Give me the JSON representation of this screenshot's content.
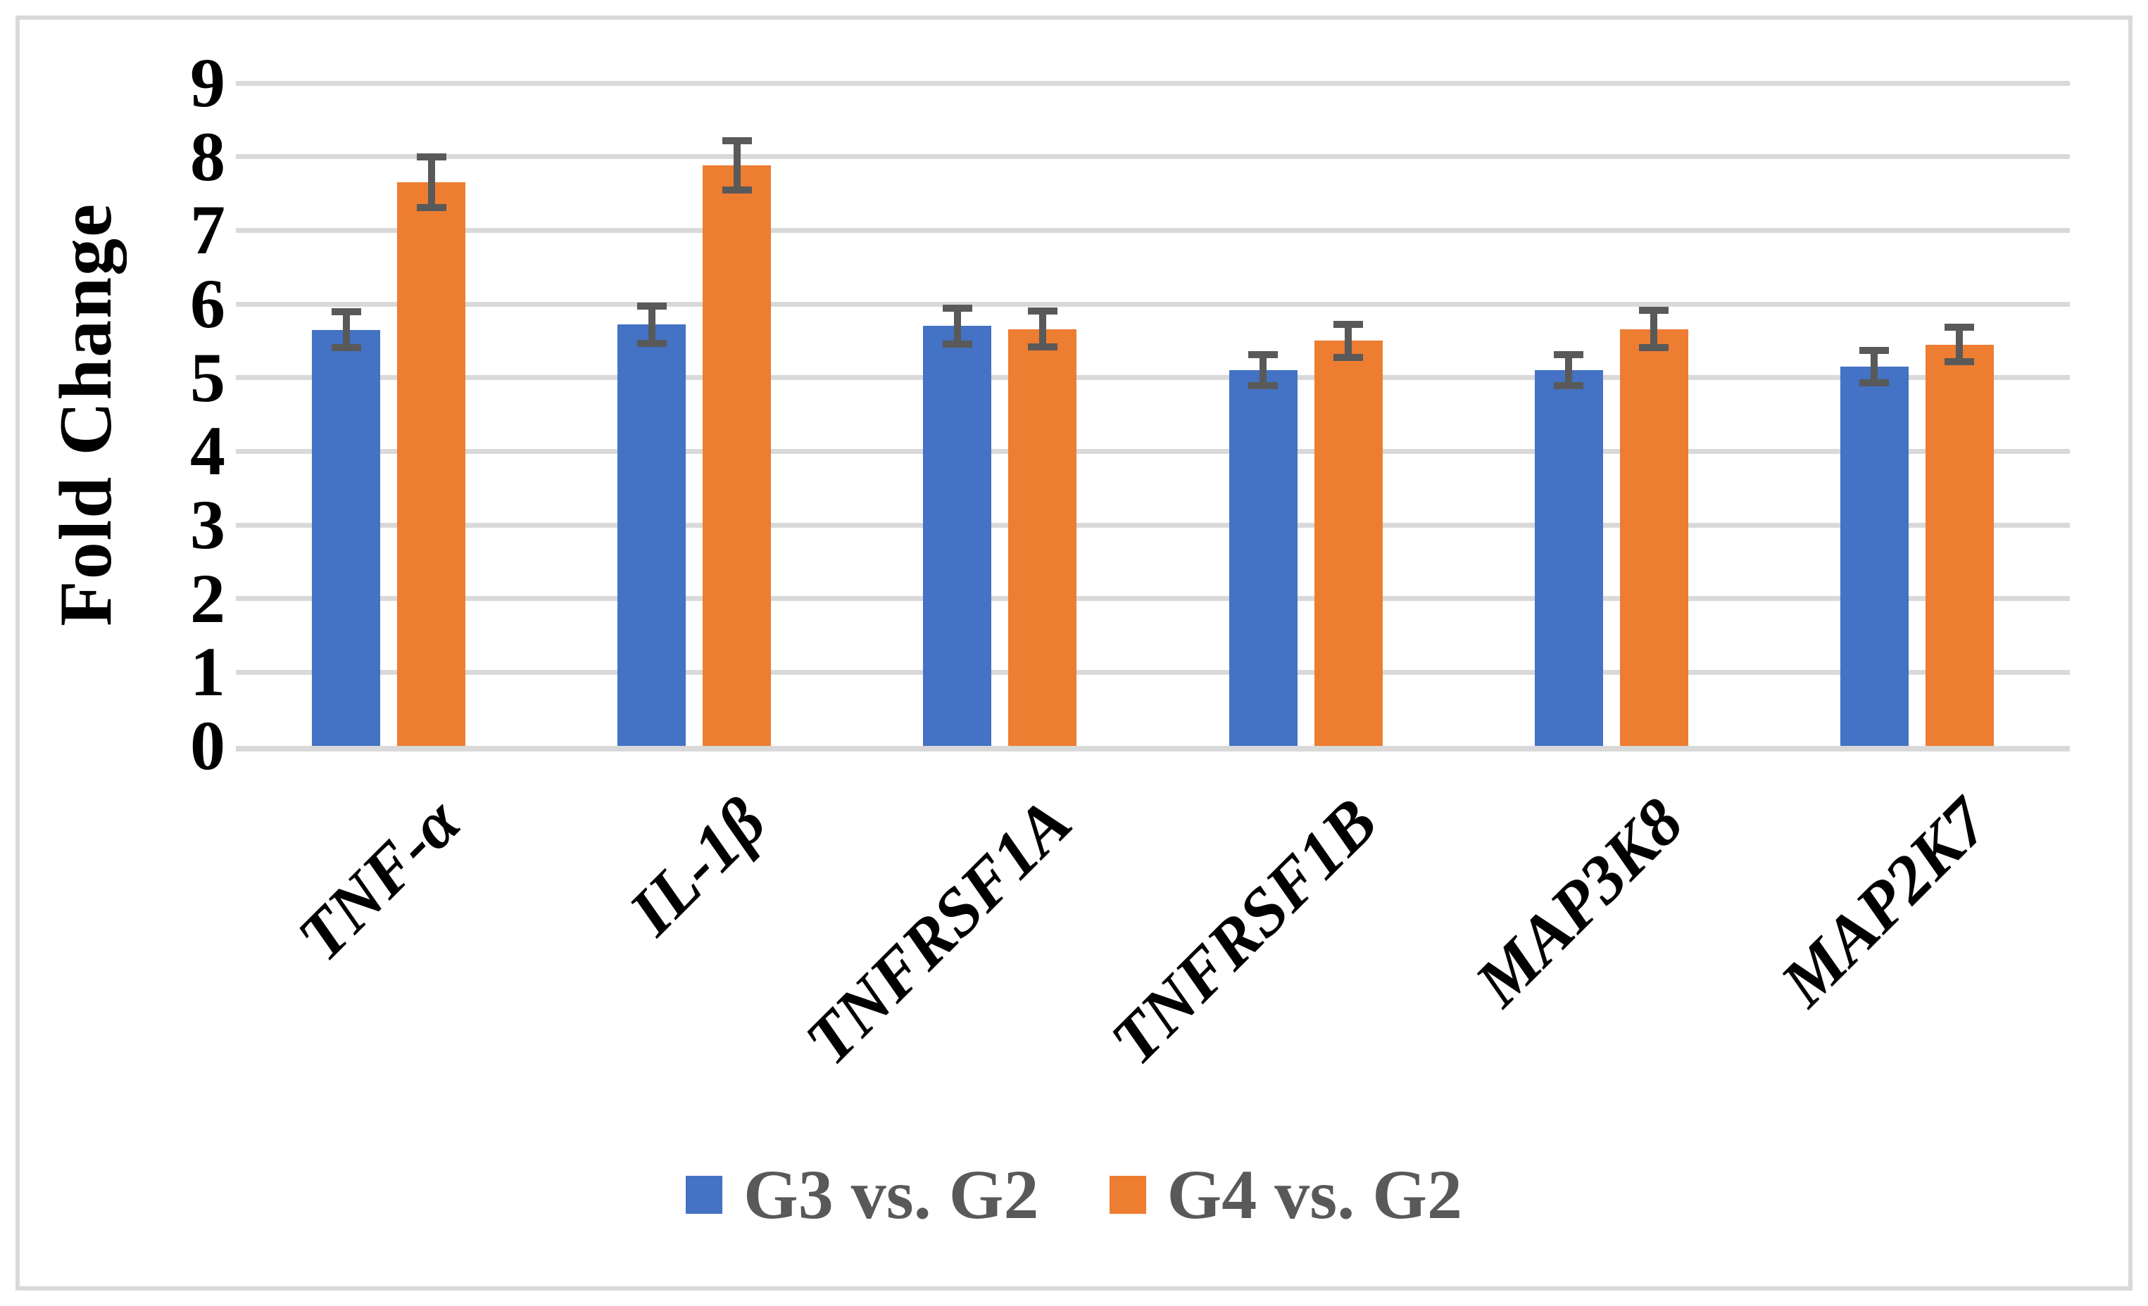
{
  "chart_data": {
    "type": "bar",
    "title": "",
    "xlabel": "",
    "ylabel": "Fold Change",
    "ylim": [
      0,
      9
    ],
    "ytick_step": 1,
    "yticks": [
      0,
      1,
      2,
      3,
      4,
      5,
      6,
      7,
      8,
      9
    ],
    "grid": "horizontal",
    "legend_position": "bottom",
    "categories": [
      "TNF-α",
      "IL-1β",
      "TNFRSF1A",
      "TNFRSF1B",
      "MAP3K8",
      "MAP2K7"
    ],
    "series": [
      {
        "name": "G3 vs. G2",
        "color": "#4472C4",
        "values": [
          5.65,
          5.72,
          5.7,
          5.1,
          5.1,
          5.15
        ],
        "errors": [
          0.29,
          0.3,
          0.29,
          0.26,
          0.26,
          0.27
        ]
      },
      {
        "name": "G4 vs. G2",
        "color": "#ED7D31",
        "values": [
          7.65,
          7.88,
          5.66,
          5.5,
          5.66,
          5.45
        ],
        "errors": [
          0.39,
          0.38,
          0.29,
          0.27,
          0.3,
          0.28
        ]
      }
    ],
    "colors": {
      "background": "#FFFFFF",
      "frame_border": "#D9D9D9",
      "gridline": "#D9D9D9",
      "axis_line": "#D9D9D9",
      "error_bar": "#595959",
      "tick_label": "#000000",
      "category_label": "#000000",
      "ylabel_text": "#000000",
      "legend_text": "#595959"
    }
  }
}
